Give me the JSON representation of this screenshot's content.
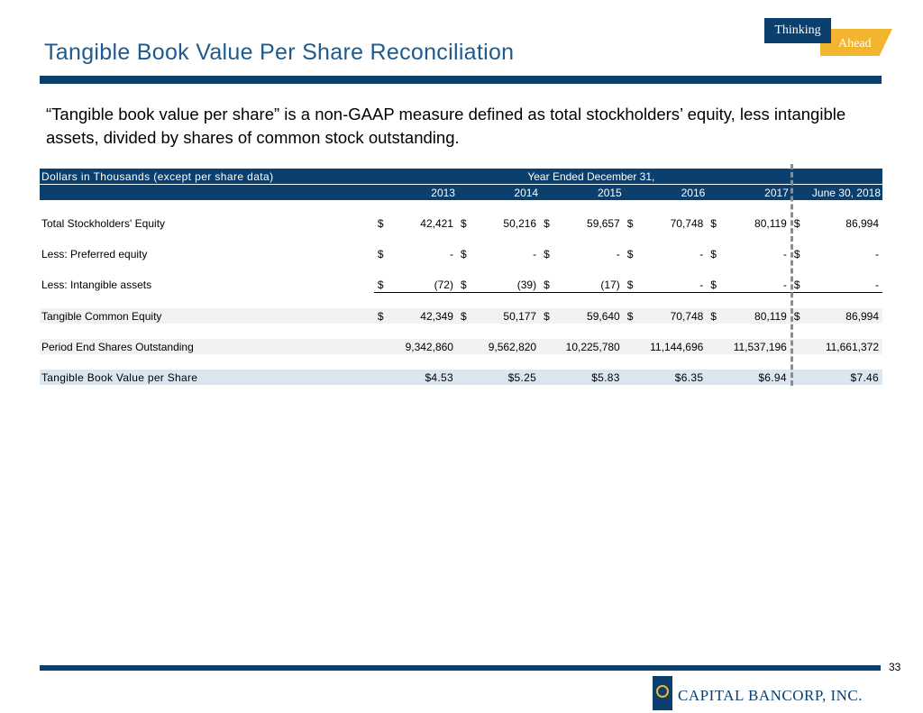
{
  "header": {
    "title": "Tangible Book Value Per Share Reconciliation"
  },
  "badge": {
    "word1": "Thinking",
    "word2": "Ahead"
  },
  "intro": "“Tangible book value per share” is a non-GAAP measure defined as total stockholders’ equity, less intangible assets, divided by shares of common stock outstanding.",
  "table": {
    "units_label": "Dollars in Thousands (except per share data)",
    "period_label": "Year Ended December 31,",
    "years": [
      "2013",
      "2014",
      "2015",
      "2016",
      "2017",
      "June 30, 2018"
    ],
    "rows": [
      {
        "label": "Total Stockholders' Equity",
        "currency": [
          "$",
          "$",
          "$",
          "$",
          "$",
          "$"
        ],
        "values": [
          "42,421",
          "50,216",
          "59,657",
          "70,748",
          "80,119",
          "86,994"
        ]
      },
      {
        "label": "Less: Preferred equity",
        "currency": [
          "$",
          "$",
          "$",
          "$",
          "$",
          "$"
        ],
        "values": [
          "-",
          "-",
          "-",
          "-",
          "-",
          "-"
        ]
      },
      {
        "label": "Less: Intangible assets",
        "currency": [
          "$",
          "$",
          "$",
          "$",
          "$",
          "$"
        ],
        "values": [
          "(72)",
          "(39)",
          "(17)",
          "-",
          "-",
          "-"
        ]
      },
      {
        "label": "Tangible Common Equity",
        "currency": [
          "$",
          "$",
          "$",
          "$",
          "$",
          "$"
        ],
        "values": [
          "42,349",
          "50,177",
          "59,640",
          "70,748",
          "80,119",
          "86,994"
        ]
      },
      {
        "label": "Period End Shares Outstanding",
        "values": [
          "9,342,860",
          "9,562,820",
          "10,225,780",
          "11,144,696",
          "11,537,196",
          "11,661,372"
        ]
      },
      {
        "label": "Tangible Book Value per Share",
        "values": [
          "$4.53",
          "$5.25",
          "$5.83",
          "$6.35",
          "$6.94",
          "$7.46"
        ]
      }
    ]
  },
  "footer": {
    "page_number": "33",
    "company": "CAPITAL BANCORP, INC."
  },
  "colors": {
    "navy": "#0b3f6e",
    "title_blue": "#1f5a8f",
    "gold": "#f3b52f",
    "final_row": "#dce6f1"
  }
}
